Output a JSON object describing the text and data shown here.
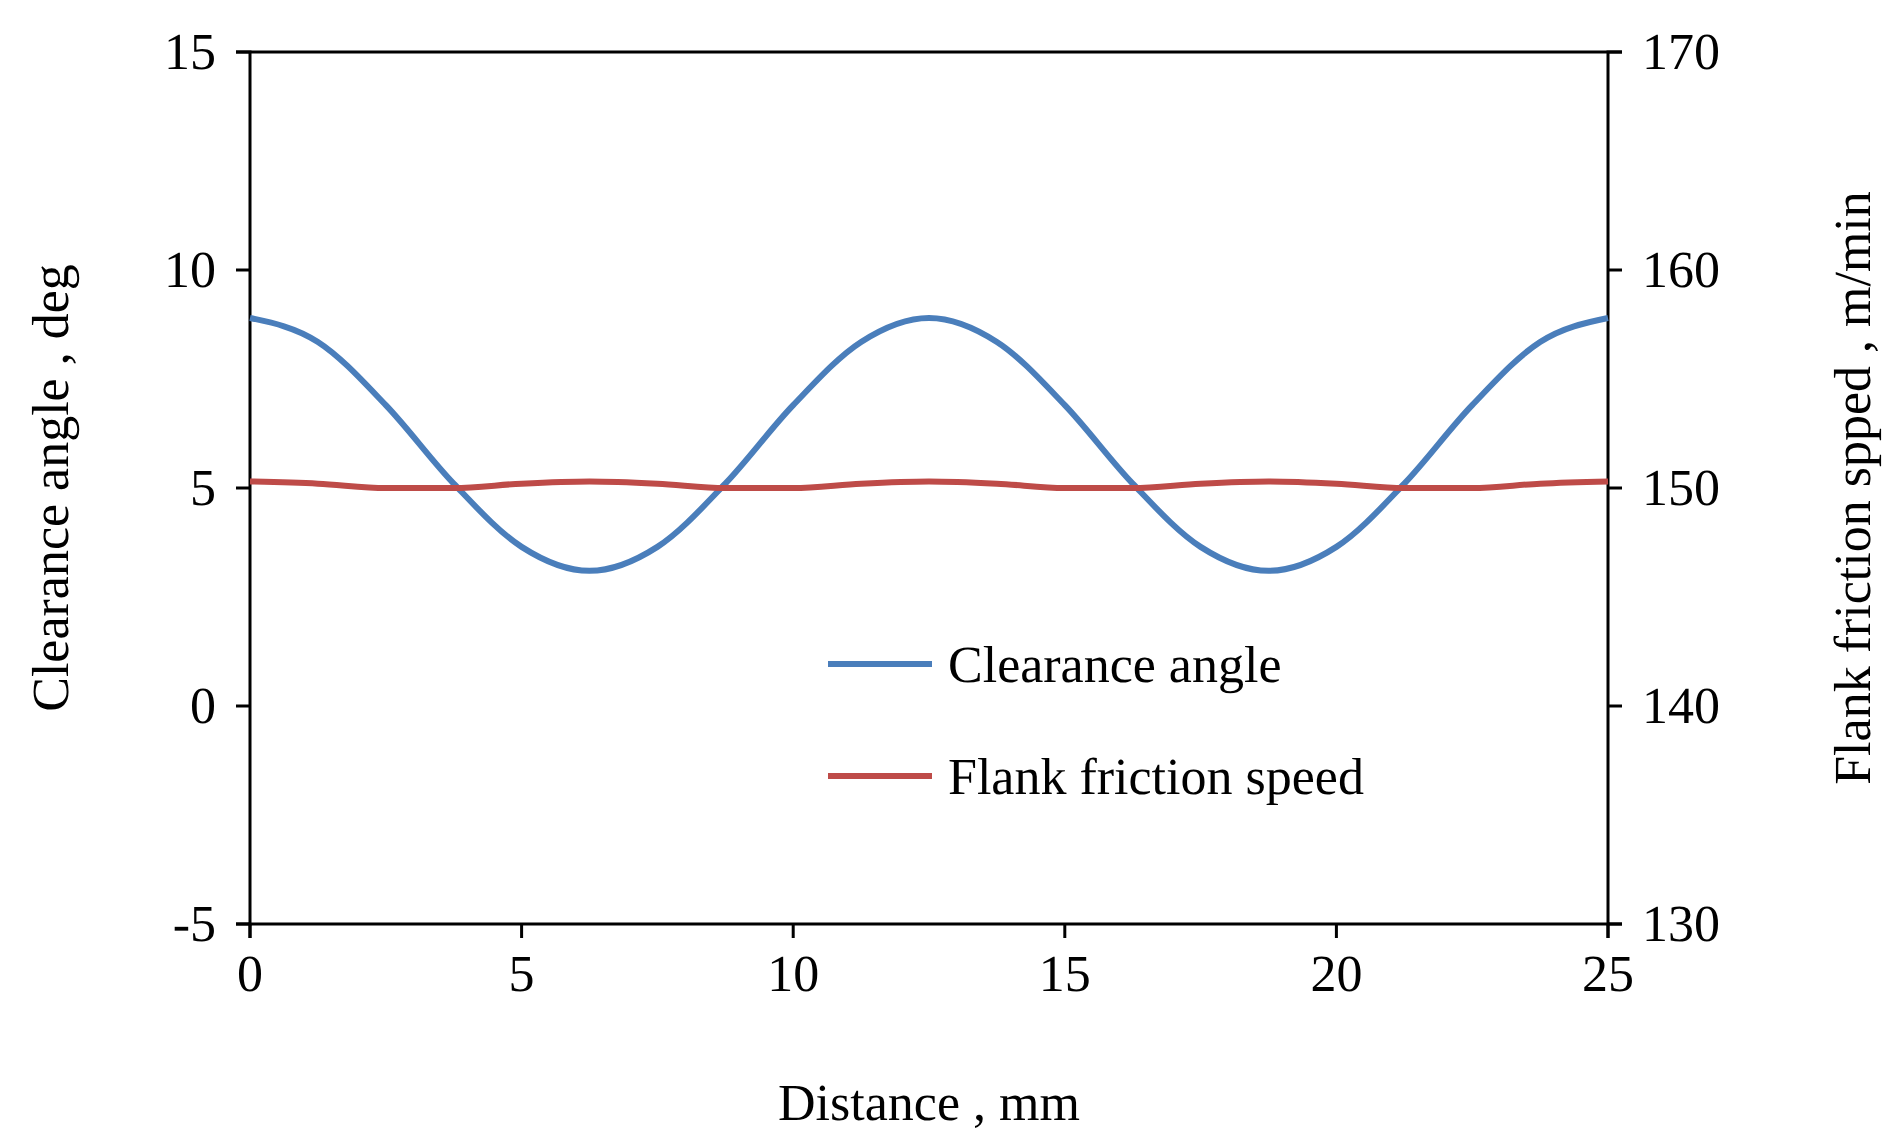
{
  "chart_data": {
    "type": "line",
    "xlabel": "Distance , mm",
    "ylabel": "Clearance angle , deg",
    "y2label": "Flank friction spped , m/min",
    "x": [
      0,
      1.25,
      2.5,
      3.75,
      5,
      6.25,
      7.5,
      8.75,
      10,
      11.25,
      12.5,
      13.75,
      15,
      16.25,
      17.5,
      18.75,
      20,
      21.25,
      22.5,
      23.75,
      25
    ],
    "series": [
      {
        "name": "Clearance angle",
        "color": "#4a7ebb",
        "values": [
          8.9,
          8.35,
          6.9,
          5.1,
          3.65,
          3.1,
          3.65,
          5.1,
          6.9,
          8.35,
          8.9,
          8.35,
          6.9,
          5.1,
          3.65,
          3.1,
          3.65,
          5.1,
          6.9,
          8.35,
          8.9
        ]
      },
      {
        "name": "Flank friction speed",
        "color": "#be4b48",
        "axis": "y2",
        "values": [
          150.3,
          150.2,
          150.0,
          150.0,
          150.2,
          150.3,
          150.2,
          150.0,
          150.0,
          150.2,
          150.3,
          150.2,
          150.0,
          150.0,
          150.2,
          150.3,
          150.2,
          150.0,
          150.0,
          150.2,
          150.3
        ]
      }
    ],
    "xlim": [
      0,
      25
    ],
    "xticks": [
      0,
      5,
      10,
      15,
      20,
      25
    ],
    "ylim": [
      -5,
      15
    ],
    "yticks": [
      -5,
      0,
      5,
      10,
      15
    ],
    "y2lim": [
      130,
      170
    ],
    "y2ticks": [
      130,
      140,
      150,
      160,
      170
    ],
    "grid": false,
    "legend": "bottom right",
    "marker": "none",
    "line_style": "solid"
  }
}
